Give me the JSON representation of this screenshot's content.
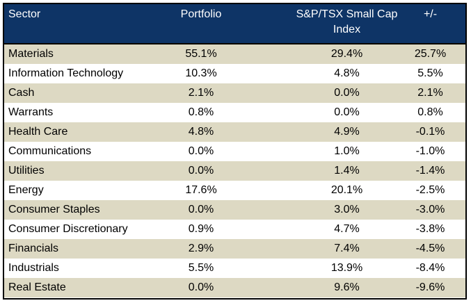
{
  "header": {
    "sector": "Sector",
    "portfolio": "Portfolio",
    "index": "S&P/TSX Small Cap Index",
    "diff": "+/-"
  },
  "colors": {
    "header_bg": "#0e3466",
    "shaded_row": "#ddd9c3",
    "plain_row": "#ffffff"
  },
  "rows": [
    {
      "sector": "Materials",
      "portfolio": "55.1%",
      "index": "29.4%",
      "diff": "25.7%"
    },
    {
      "sector": "Information Technology",
      "portfolio": "10.3%",
      "index": "4.8%",
      "diff": "5.5%"
    },
    {
      "sector": "Cash",
      "portfolio": "2.1%",
      "index": "0.0%",
      "diff": "2.1%"
    },
    {
      "sector": "Warrants",
      "portfolio": "0.8%",
      "index": "0.0%",
      "diff": "0.8%"
    },
    {
      "sector": "Health Care",
      "portfolio": "4.8%",
      "index": "4.9%",
      "diff": "-0.1%"
    },
    {
      "sector": "Communications",
      "portfolio": "0.0%",
      "index": "1.0%",
      "diff": "-1.0%"
    },
    {
      "sector": "Utilities",
      "portfolio": "0.0%",
      "index": "1.4%",
      "diff": "-1.4%"
    },
    {
      "sector": "Energy",
      "portfolio": "17.6%",
      "index": "20.1%",
      "diff": "-2.5%"
    },
    {
      "sector": "Consumer Staples",
      "portfolio": "0.0%",
      "index": "3.0%",
      "diff": "-3.0%"
    },
    {
      "sector": "Consumer Discretionary",
      "portfolio": "0.9%",
      "index": "4.7%",
      "diff": "-3.8%"
    },
    {
      "sector": "Financials",
      "portfolio": "2.9%",
      "index": "7.4%",
      "diff": "-4.5%"
    },
    {
      "sector": "Industrials",
      "portfolio": "5.5%",
      "index": "13.9%",
      "diff": "-8.4%"
    },
    {
      "sector": "Real Estate",
      "portfolio": "0.0%",
      "index": "9.6%",
      "diff": "-9.6%"
    }
  ]
}
